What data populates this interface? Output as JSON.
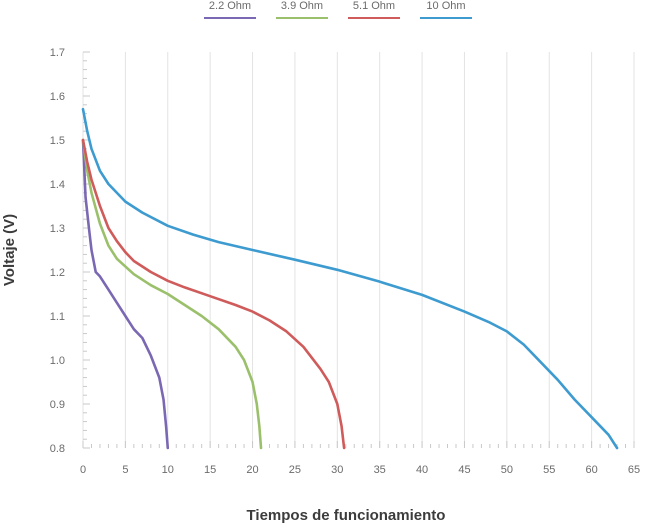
{
  "chart_data": {
    "type": "line",
    "title": "",
    "xlabel": "Tiempos de funcionamiento",
    "ylabel": "Voltaje (V)",
    "xlim": [
      0,
      65
    ],
    "ylim": [
      0.8,
      1.7
    ],
    "x_ticks": [
      0,
      5,
      10,
      15,
      20,
      25,
      30,
      35,
      40,
      45,
      50,
      55,
      60,
      65
    ],
    "y_ticks": [
      0.8,
      0.9,
      1.0,
      1.1,
      1.2,
      1.3,
      1.4,
      1.5,
      1.6,
      1.7
    ],
    "y_tick_labels": [
      "0.8",
      "0.9",
      "1.0",
      "1.1",
      "1.2",
      "1.3",
      "1.4",
      "1.5",
      "1.6",
      "1.7"
    ],
    "grid": {
      "vertical": true,
      "horizontal": false
    },
    "legend_position": "top",
    "series": [
      {
        "name": "2.2 Ohm",
        "color": "#7b68b3",
        "x": [
          0,
          0.3,
          0.7,
          1,
          1.5,
          2,
          3,
          4,
          5,
          6,
          7,
          8,
          9,
          9.5,
          9.8,
          10
        ],
        "y": [
          1.5,
          1.37,
          1.3,
          1.25,
          1.2,
          1.19,
          1.16,
          1.13,
          1.1,
          1.07,
          1.05,
          1.01,
          0.96,
          0.91,
          0.85,
          0.8
        ]
      },
      {
        "name": "3.9 Ohm",
        "color": "#9bc06b",
        "x": [
          0,
          0.5,
          1,
          2,
          3,
          4,
          6,
          8,
          10,
          12,
          14,
          16,
          18,
          19,
          20,
          20.5,
          20.8,
          21
        ],
        "y": [
          1.5,
          1.43,
          1.38,
          1.31,
          1.26,
          1.23,
          1.195,
          1.17,
          1.15,
          1.125,
          1.1,
          1.07,
          1.03,
          1.0,
          0.95,
          0.9,
          0.85,
          0.8
        ]
      },
      {
        "name": "5.1 Ohm",
        "color": "#cf5b5b",
        "x": [
          0,
          0.5,
          1,
          2,
          3,
          4,
          5,
          6,
          8,
          10,
          12,
          15,
          18,
          20,
          22,
          24,
          26,
          28,
          29,
          30,
          30.5,
          30.8
        ],
        "y": [
          1.5,
          1.45,
          1.41,
          1.35,
          1.3,
          1.27,
          1.245,
          1.225,
          1.2,
          1.18,
          1.165,
          1.145,
          1.125,
          1.11,
          1.09,
          1.065,
          1.03,
          0.98,
          0.95,
          0.9,
          0.85,
          0.8
        ]
      },
      {
        "name": "10 Ohm",
        "color": "#3d9bd0",
        "x": [
          0,
          0.5,
          1,
          2,
          3,
          5,
          7,
          10,
          13,
          16,
          20,
          25,
          30,
          35,
          40,
          45,
          48,
          50,
          52,
          54,
          56,
          58,
          60,
          62,
          63
        ],
        "y": [
          1.57,
          1.52,
          1.48,
          1.43,
          1.4,
          1.36,
          1.335,
          1.305,
          1.285,
          1.268,
          1.25,
          1.228,
          1.205,
          1.178,
          1.148,
          1.11,
          1.085,
          1.065,
          1.035,
          0.995,
          0.955,
          0.91,
          0.87,
          0.83,
          0.8
        ]
      }
    ]
  }
}
